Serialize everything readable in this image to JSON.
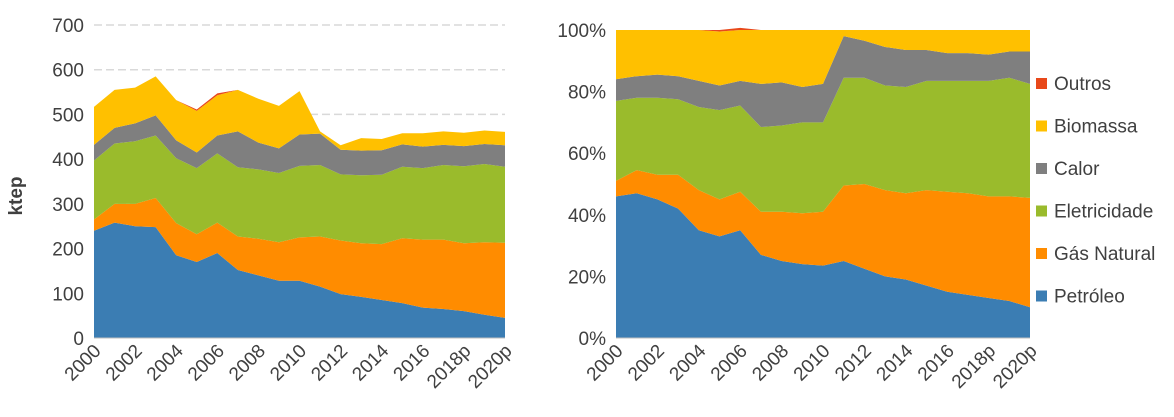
{
  "chart_data": [
    {
      "type": "area",
      "stacked": true,
      "ylabel": "ktep",
      "ylim": [
        0,
        700
      ],
      "yticks": [
        "0",
        "100",
        "200",
        "300",
        "400",
        "500",
        "600",
        "700"
      ],
      "ytick_values": [
        0,
        100,
        200,
        300,
        400,
        500,
        600,
        700
      ],
      "grid": true,
      "x": [
        "2000",
        "2001",
        "2002",
        "2003",
        "2004",
        "2005",
        "2006",
        "2007",
        "2008",
        "2009",
        "2010",
        "2011",
        "2012",
        "2013",
        "2014",
        "2015",
        "2016",
        "2017",
        "2018p",
        "2019p",
        "2020p"
      ],
      "xtick_labels": [
        "2000",
        "2002",
        "2004",
        "2006",
        "2008",
        "2010",
        "2012",
        "2014",
        "2016",
        "2018p",
        "2020p"
      ],
      "series": [
        {
          "name": "Petróleo",
          "color": "#3B7DB3",
          "values": [
            240,
            258,
            250,
            248,
            185,
            170,
            190,
            152,
            140,
            128,
            128,
            115,
            98,
            92,
            85,
            78,
            68,
            65,
            60,
            52,
            45
          ]
        },
        {
          "name": "Gás Natural",
          "color": "#FF8C00",
          "values": [
            25,
            42,
            50,
            65,
            72,
            62,
            68,
            75,
            82,
            86,
            97,
            112,
            120,
            120,
            125,
            145,
            152,
            155,
            152,
            162,
            168
          ]
        },
        {
          "name": "Eletricidade",
          "color": "#9ABB2C",
          "values": [
            132,
            135,
            140,
            140,
            145,
            148,
            155,
            155,
            155,
            155,
            160,
            160,
            148,
            152,
            155,
            160,
            160,
            167,
            172,
            175,
            170
          ]
        },
        {
          "name": "Calor",
          "color": "#7F7F7F",
          "values": [
            35,
            35,
            40,
            45,
            40,
            35,
            40,
            80,
            60,
            55,
            70,
            70,
            55,
            55,
            55,
            50,
            48,
            45,
            45,
            45,
            48
          ]
        },
        {
          "name": "Biomassa",
          "color": "#FFC000",
          "values": [
            85,
            85,
            80,
            87,
            90,
            93,
            90,
            93,
            98,
            95,
            97,
            5,
            10,
            28,
            25,
            25,
            30,
            30,
            30,
            30,
            30
          ]
        },
        {
          "name": "Outros",
          "color": "#E8481A",
          "values": [
            0,
            0,
            0,
            0,
            0,
            3,
            4,
            0,
            0,
            0,
            0,
            0,
            0,
            0,
            0,
            0,
            0,
            0,
            0,
            0,
            0
          ]
        }
      ]
    },
    {
      "type": "area",
      "stacked": true,
      "percent": true,
      "ylim": [
        0,
        100
      ],
      "yticks": [
        "0%",
        "20%",
        "40%",
        "60%",
        "80%",
        "100%"
      ],
      "ytick_values": [
        0,
        20,
        40,
        60,
        80,
        100
      ],
      "grid": false,
      "x": [
        "2000",
        "2001",
        "2002",
        "2003",
        "2004",
        "2005",
        "2006",
        "2007",
        "2008",
        "2009",
        "2010",
        "2011",
        "2012",
        "2013",
        "2014",
        "2015",
        "2016",
        "2017",
        "2018p",
        "2019p",
        "2020p"
      ],
      "xtick_labels": [
        "2000",
        "2002",
        "2004",
        "2006",
        "2008",
        "2010",
        "2012",
        "2014",
        "2016",
        "2018p",
        "2020p"
      ],
      "legend_position": "right",
      "series": [
        {
          "name": "Petróleo",
          "color": "#3B7DB3",
          "values": [
            46,
            47,
            45,
            42,
            35,
            33,
            35,
            27,
            25,
            24,
            23.5,
            25,
            22.5,
            20,
            19,
            17,
            15,
            14,
            13,
            12,
            10
          ]
        },
        {
          "name": "Gás Natural",
          "color": "#FF8C00",
          "values": [
            5,
            7.5,
            8,
            11,
            13,
            12,
            12.5,
            14,
            16,
            16.5,
            17.5,
            24.5,
            27.5,
            28,
            28,
            31,
            32.5,
            33,
            33,
            34,
            35.5
          ]
        },
        {
          "name": "Eletricidade",
          "color": "#9ABB2C",
          "values": [
            26,
            23.5,
            25,
            24.5,
            27,
            29,
            28,
            27.5,
            28,
            29.5,
            29,
            35,
            34.5,
            34,
            34.5,
            35.5,
            36,
            36.5,
            37.5,
            38.5,
            37
          ]
        },
        {
          "name": "Calor",
          "color": "#7F7F7F",
          "values": [
            7,
            7,
            7.5,
            7.5,
            8.5,
            8,
            8,
            14,
            14,
            11.5,
            12.5,
            13.5,
            12,
            12.5,
            12,
            10,
            9,
            9,
            8.5,
            8.5,
            10.5
          ]
        },
        {
          "name": "Biomassa",
          "color": "#FFC000",
          "values": [
            16,
            15,
            14.5,
            15,
            16.5,
            17.5,
            16.5,
            17.5,
            17,
            18.5,
            17.5,
            2,
            3.5,
            5.5,
            6.5,
            6.5,
            7.5,
            7.5,
            8,
            7,
            7
          ]
        },
        {
          "name": "Outros",
          "color": "#E8481A",
          "values": [
            0,
            0,
            0,
            0,
            0,
            0.5,
            0.7,
            0,
            0,
            0,
            0,
            0,
            0,
            0,
            0,
            0,
            0,
            0,
            0,
            0,
            0
          ]
        }
      ]
    }
  ],
  "legend": {
    "items": [
      {
        "label": "Outros",
        "color": "#E8481A"
      },
      {
        "label": "Biomassa",
        "color": "#FFC000"
      },
      {
        "label": "Calor",
        "color": "#7F7F7F"
      },
      {
        "label": "Eletricidade",
        "color": "#9ABB2C"
      },
      {
        "label": "Gás Natural",
        "color": "#FF8C00"
      },
      {
        "label": "Petróleo",
        "color": "#3B7DB3"
      }
    ]
  }
}
